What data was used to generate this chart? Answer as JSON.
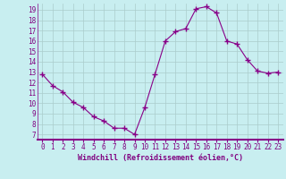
{
  "x": [
    0,
    1,
    2,
    3,
    4,
    5,
    6,
    7,
    8,
    9,
    10,
    11,
    12,
    13,
    14,
    15,
    16,
    17,
    18,
    19,
    20,
    21,
    22,
    23
  ],
  "y": [
    12.8,
    11.7,
    11.1,
    10.1,
    9.6,
    8.7,
    8.3,
    7.6,
    7.6,
    7.0,
    9.6,
    12.8,
    16.0,
    16.9,
    17.2,
    19.1,
    19.3,
    18.7,
    16.0,
    15.7,
    14.2,
    13.1,
    12.9,
    13.0
  ],
  "line_color": "#880088",
  "marker": "+",
  "marker_size": 4,
  "marker_lw": 1.0,
  "line_width": 0.8,
  "bg_color": "#c8eef0",
  "bar_color": "#800080",
  "grid_color": "#aacccc",
  "xlabel": "Windchill (Refroidissement éolien,°C)",
  "xlabel_color": "#800080",
  "tick_color": "#800080",
  "xlim": [
    -0.5,
    23.5
  ],
  "ylim": [
    6.5,
    19.6
  ],
  "yticks": [
    7,
    8,
    9,
    10,
    11,
    12,
    13,
    14,
    15,
    16,
    17,
    18,
    19
  ],
  "xticks": [
    0,
    1,
    2,
    3,
    4,
    5,
    6,
    7,
    8,
    9,
    10,
    11,
    12,
    13,
    14,
    15,
    16,
    17,
    18,
    19,
    20,
    21,
    22,
    23
  ],
  "separator_color": "#880088",
  "font_size_tick": 5.5,
  "font_size_label": 6.0
}
